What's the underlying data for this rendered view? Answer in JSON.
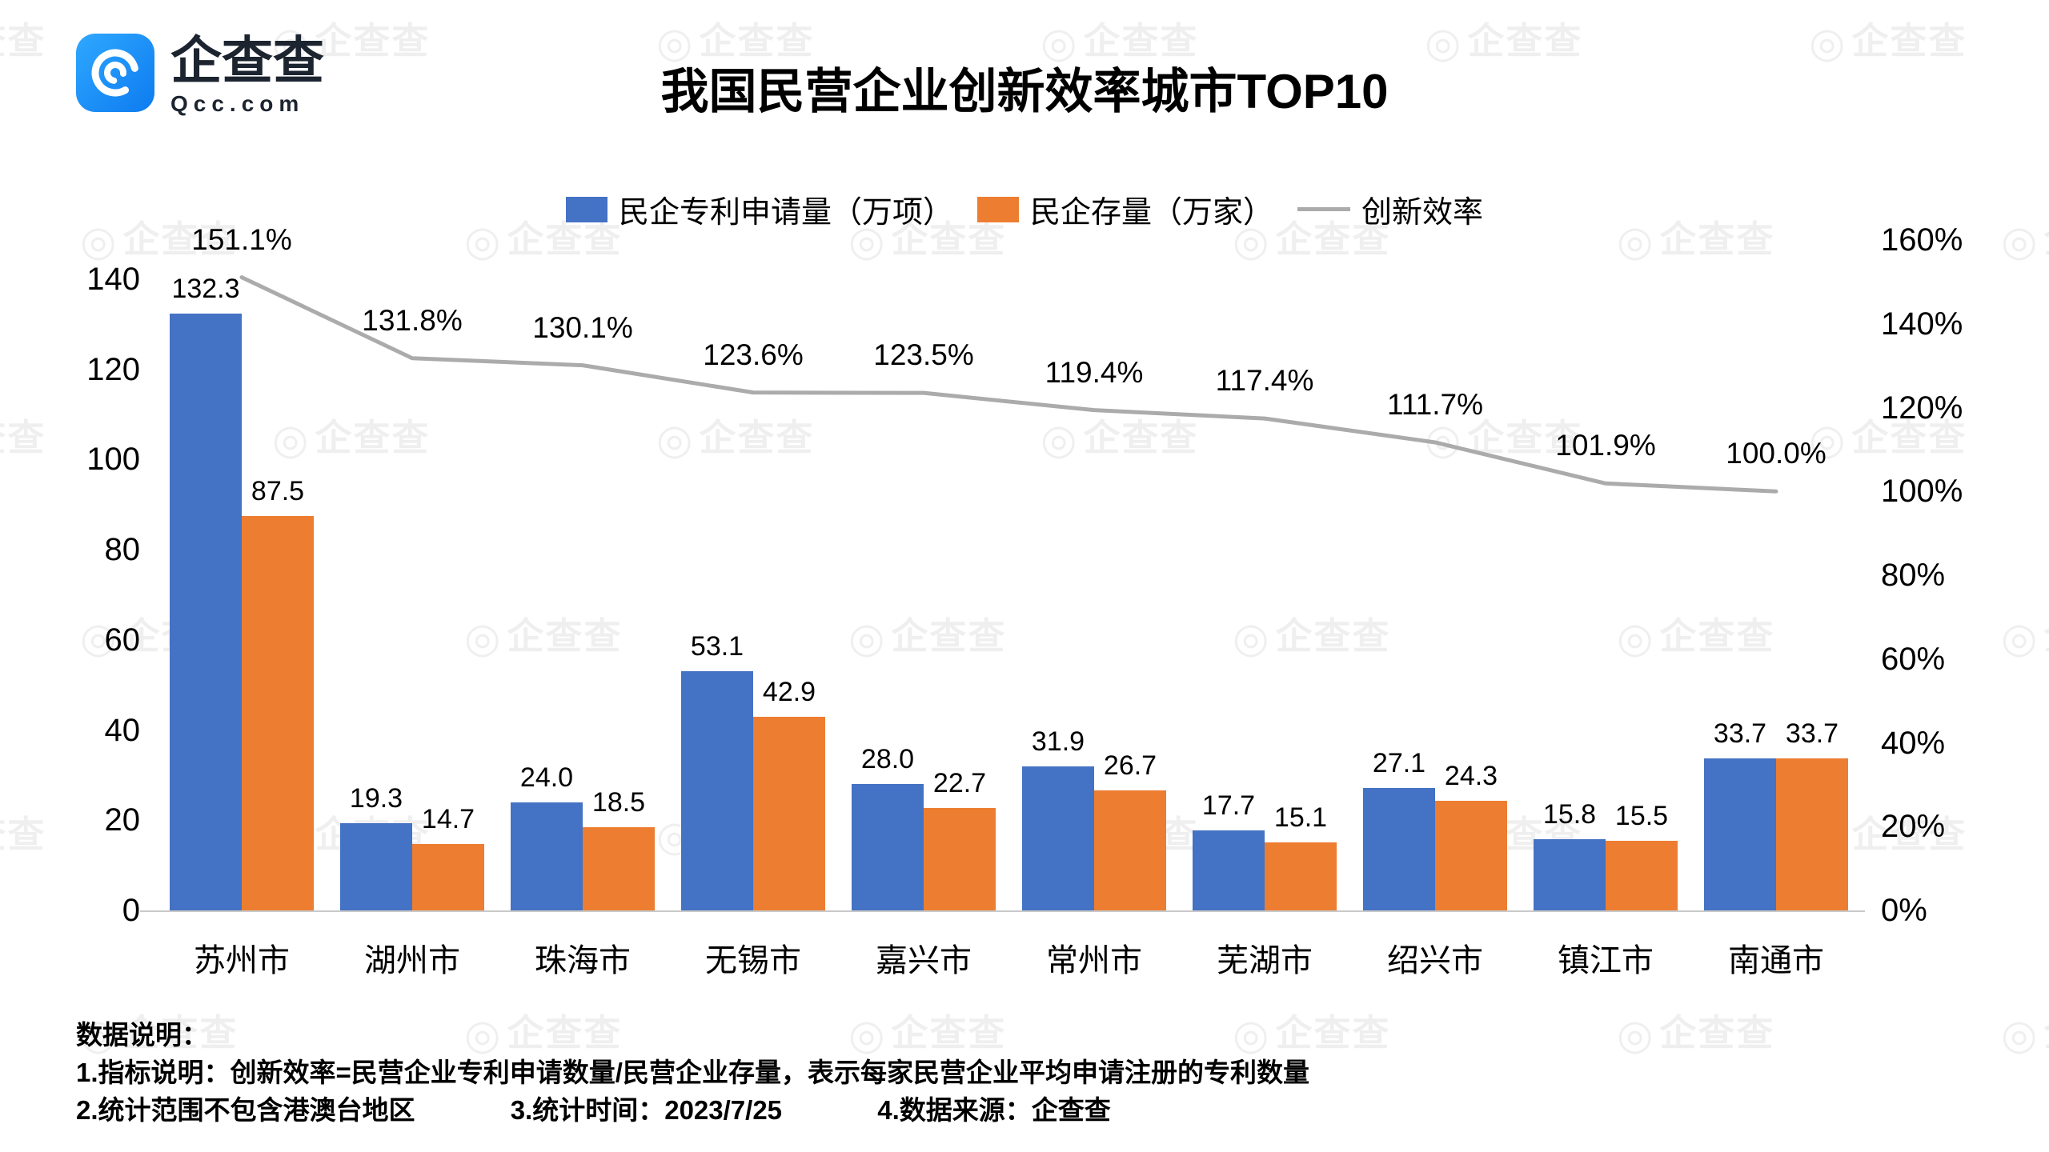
{
  "brand": {
    "logo_text": "企查查",
    "logo_subtext": "Qcc.com",
    "logo_color": "#1890ff"
  },
  "title": "我国民营企业创新效率城市TOP10",
  "legend": [
    {
      "label": "民企专利申请量（万项）",
      "type": "bar",
      "color": "#4472c4"
    },
    {
      "label": "民企存量（万家）",
      "type": "bar",
      "color": "#ed7d31"
    },
    {
      "label": "创新效率",
      "type": "line",
      "color": "#ababab"
    }
  ],
  "chart_data": {
    "type": "bar",
    "subtype": "grouped bars with secondary-axis line",
    "title": "我国民营企业创新效率城市TOP10",
    "categories": [
      "苏州市",
      "湖州市",
      "珠海市",
      "无锡市",
      "嘉兴市",
      "常州市",
      "芜湖市",
      "绍兴市",
      "镇江市",
      "南通市"
    ],
    "series": [
      {
        "name": "民企专利申请量（万项）",
        "type": "bar",
        "axis": "left",
        "color": "#4472c4",
        "values": [
          132.3,
          19.3,
          24.0,
          53.1,
          28.0,
          31.9,
          17.7,
          27.1,
          15.8,
          33.7
        ]
      },
      {
        "name": "民企存量（万家）",
        "type": "bar",
        "axis": "left",
        "color": "#ed7d31",
        "values": [
          87.5,
          14.7,
          18.5,
          42.9,
          22.7,
          26.7,
          15.1,
          24.3,
          15.5,
          33.7
        ]
      },
      {
        "name": "创新效率",
        "type": "line",
        "axis": "right",
        "color": "#ababab",
        "unit": "%",
        "values": [
          151.1,
          131.8,
          130.1,
          123.6,
          123.5,
          119.4,
          117.4,
          111.7,
          101.9,
          100.0
        ]
      }
    ],
    "left_axis": {
      "ticks": [
        0,
        20,
        40,
        60,
        80,
        100,
        120,
        140
      ],
      "max_tick": 140
    },
    "right_axis": {
      "ticks": [
        "0%",
        "20%",
        "40%",
        "60%",
        "80%",
        "100%",
        "120%",
        "140%",
        "160%"
      ],
      "max_tick": 160
    },
    "grid": false,
    "legend_position": "top-center"
  },
  "footer": {
    "heading": "数据说明：",
    "line1": "1.指标说明：创新效率=民营企业专利申请数量/民营企业存量，表示每家民营企业平均申请注册的专利数量",
    "line2_items": [
      "2.统计范围不包含港澳台地区",
      "3.统计时间：2023/7/25",
      "4.数据来源：企查查"
    ]
  },
  "watermark_text": "企查查"
}
